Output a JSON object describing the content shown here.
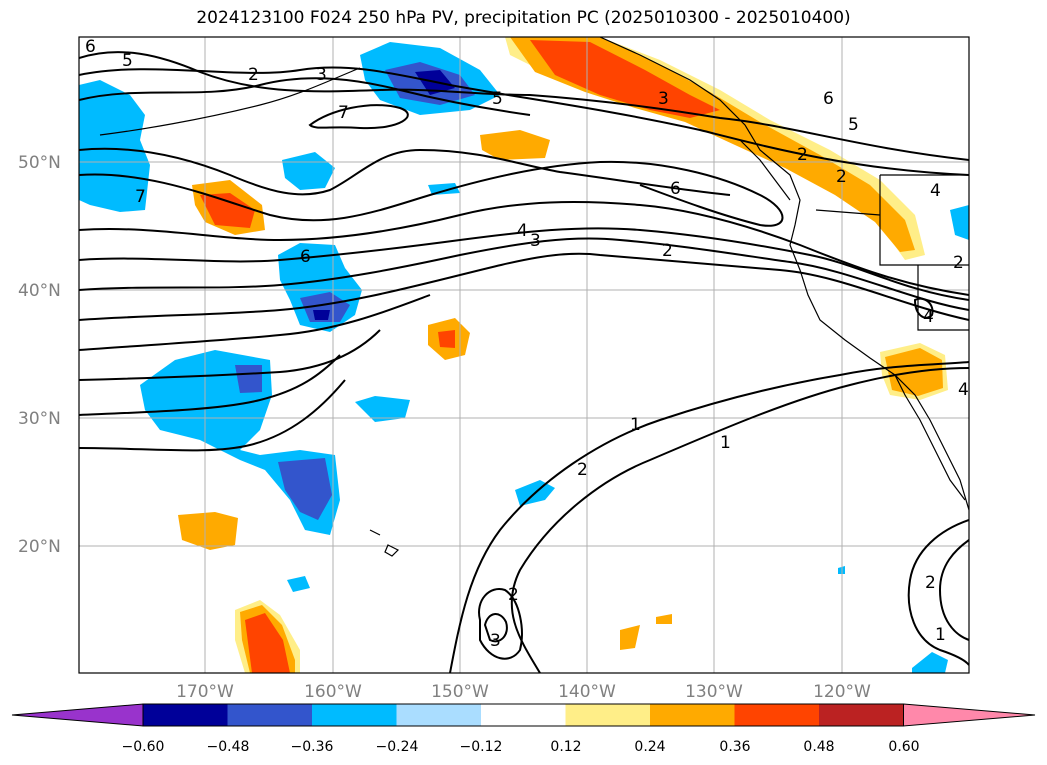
{
  "title": "2024123100 F024 250 hPa PV, precipitation PC (2025010300 - 2025010400)",
  "map": {
    "lat_labels": [
      "50°N",
      "40°N",
      "30°N",
      "20°N"
    ],
    "lon_labels": [
      "170°W",
      "160°W",
      "150°W",
      "140°W",
      "130°W",
      "120°W"
    ],
    "gridline_color": "#b0b0b0"
  },
  "colorbar": {
    "ticks": [
      "−0.60",
      "−0.48",
      "−0.36",
      "−0.24",
      "−0.12",
      "0.12",
      "0.24",
      "0.36",
      "0.48",
      "0.60"
    ],
    "colors": [
      "#9933cc",
      "#000099",
      "#3355cc",
      "#00bbff",
      "#aaddff",
      "#ffffff",
      "#ffee88",
      "#ffaa00",
      "#ff4400",
      "#bb2222",
      "#ff88aa"
    ]
  },
  "contour_labels": [
    "6",
    "5",
    "2",
    "3",
    "7",
    "5",
    "3",
    "6",
    "5",
    "2",
    "2",
    "4",
    "7",
    "4",
    "3",
    "6",
    "2",
    "6",
    "2",
    "4",
    "1",
    "1",
    "2",
    "2",
    "3",
    "4",
    "1",
    "2"
  ]
}
